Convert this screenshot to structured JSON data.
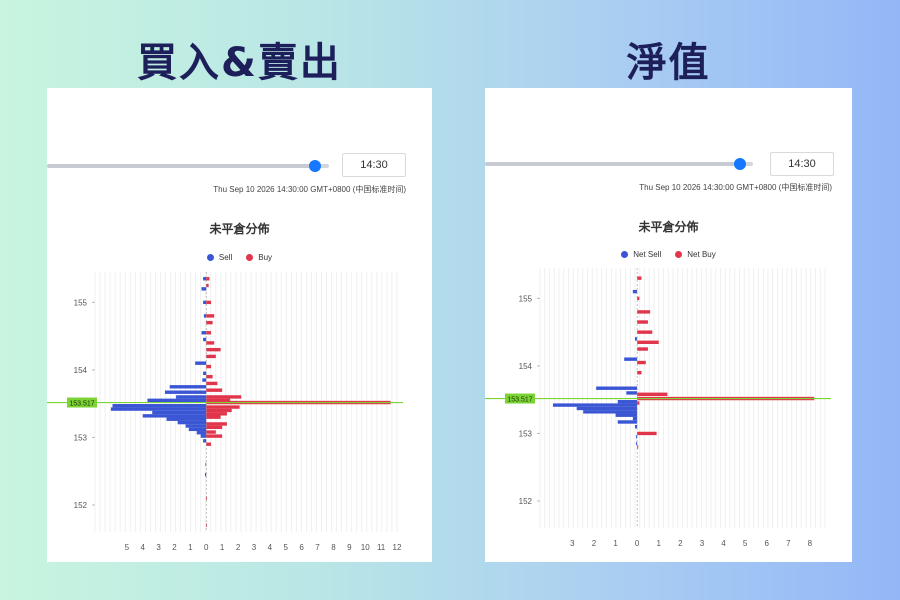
{
  "headings": {
    "left": "買入&賣出",
    "right": "淨值"
  },
  "colors": {
    "sell": "#3a56d4",
    "buy": "#e0354a",
    "price_line": "#7bd336",
    "price_label_bg": "#7bd336",
    "slider": "#1677ff"
  },
  "panels": [
    {
      "id": "left",
      "time_input": "14:30",
      "slider_value": 0.95,
      "datetime_text": "Thu Sep 10 2026 14:30:00 GMT+0800 (中国标准时间)",
      "chart_data": {
        "type": "bar",
        "orientation": "horizontal",
        "title": "未平倉分佈",
        "legend": [
          "Sell",
          "Buy"
        ],
        "legend_position": "top-center",
        "x_ticks": [
          "5",
          "4",
          "3",
          "2",
          "1",
          "0",
          "1",
          "2",
          "3",
          "4",
          "5",
          "6",
          "7",
          "8",
          "9",
          "10",
          "11",
          "12"
        ],
        "xlim": [
          -7,
          12
        ],
        "ylim": [
          151.6,
          155.45
        ],
        "y_ticks": [
          "152",
          "153",
          "154",
          "155"
        ],
        "current_price_label": "153.517",
        "current_price": 153.517,
        "grid": "vertical",
        "series": [
          {
            "name": "Sell",
            "values": [
              [
                155.35,
                0.2
              ],
              [
                155.2,
                0.3
              ],
              [
                155.0,
                0.2
              ],
              [
                154.8,
                0.15
              ],
              [
                154.55,
                0.3
              ],
              [
                154.45,
                0.2
              ],
              [
                154.1,
                0.7
              ],
              [
                153.95,
                0.2
              ],
              [
                153.85,
                0.25
              ],
              [
                153.75,
                2.3
              ],
              [
                153.67,
                2.6
              ],
              [
                153.6,
                1.9
              ],
              [
                153.55,
                3.7
              ],
              [
                153.47,
                5.9
              ],
              [
                153.42,
                6.0
              ],
              [
                153.37,
                3.4
              ],
              [
                153.32,
                4.0
              ],
              [
                153.27,
                2.5
              ],
              [
                153.22,
                1.8
              ],
              [
                153.17,
                1.3
              ],
              [
                153.12,
                1.1
              ],
              [
                153.07,
                0.6
              ],
              [
                153.02,
                0.35
              ],
              [
                152.95,
                0.2
              ],
              [
                152.6,
                0.05
              ],
              [
                152.45,
                0.08
              ]
            ]
          },
          {
            "name": "Buy",
            "values": [
              [
                155.35,
                0.2
              ],
              [
                155.25,
                0.15
              ],
              [
                155.0,
                0.3
              ],
              [
                154.8,
                0.5
              ],
              [
                154.7,
                0.4
              ],
              [
                154.55,
                0.3
              ],
              [
                154.4,
                0.5
              ],
              [
                154.3,
                0.9
              ],
              [
                154.2,
                0.6
              ],
              [
                154.05,
                0.3
              ],
              [
                153.9,
                0.4
              ],
              [
                153.8,
                0.7
              ],
              [
                153.7,
                1.0
              ],
              [
                153.6,
                2.2
              ],
              [
                153.55,
                1.5
              ],
              [
                153.517,
                11.6
              ],
              [
                153.45,
                2.1
              ],
              [
                153.4,
                1.6
              ],
              [
                153.35,
                1.3
              ],
              [
                153.3,
                0.9
              ],
              [
                153.2,
                1.3
              ],
              [
                153.15,
                1.0
              ],
              [
                153.08,
                0.6
              ],
              [
                153.02,
                1.0
              ],
              [
                152.9,
                0.3
              ],
              [
                152.1,
                0.05
              ],
              [
                151.7,
                0.05
              ]
            ]
          }
        ]
      }
    },
    {
      "id": "right",
      "time_input": "14:30",
      "slider_value": 0.95,
      "datetime_text": "Thu Sep 10 2026 14:30:00 GMT+0800 (中国标准时间)",
      "chart_data": {
        "type": "bar",
        "orientation": "horizontal",
        "title": "未平倉分佈",
        "legend": [
          "Net Sell",
          "Net Buy"
        ],
        "legend_position": "top-center",
        "x_ticks": [
          "3",
          "2",
          "1",
          "0",
          "1",
          "2",
          "3",
          "4",
          "5",
          "6",
          "7",
          "8"
        ],
        "xlim": [
          -4.5,
          8.7
        ],
        "ylim": [
          151.6,
          155.45
        ],
        "y_ticks": [
          "152",
          "153",
          "154",
          "155"
        ],
        "current_price_label": "153.517",
        "current_price": 153.517,
        "grid": "vertical",
        "series": [
          {
            "name": "Net Sell",
            "values": [
              [
                155.1,
                0.2
              ],
              [
                154.4,
                0.1
              ],
              [
                154.1,
                0.6
              ],
              [
                153.67,
                1.9
              ],
              [
                153.6,
                0.5
              ],
              [
                153.47,
                0.9
              ],
              [
                153.42,
                3.9
              ],
              [
                153.37,
                2.8
              ],
              [
                153.32,
                2.5
              ],
              [
                153.27,
                1.0
              ],
              [
                153.22,
                0.2
              ],
              [
                153.17,
                0.9
              ],
              [
                153.1,
                0.1
              ],
              [
                152.95,
                0.05
              ],
              [
                152.85,
                0.05
              ]
            ]
          },
          {
            "name": "Net Buy",
            "values": [
              [
                155.3,
                0.2
              ],
              [
                155.0,
                0.1
              ],
              [
                154.8,
                0.6
              ],
              [
                154.65,
                0.5
              ],
              [
                154.5,
                0.7
              ],
              [
                154.35,
                1.0
              ],
              [
                154.25,
                0.5
              ],
              [
                154.05,
                0.4
              ],
              [
                153.9,
                0.2
              ],
              [
                153.58,
                1.4
              ],
              [
                153.517,
                8.2
              ],
              [
                153.45,
                0.1
              ],
              [
                153.0,
                0.9
              ],
              [
                152.8,
                0.05
              ]
            ]
          }
        ]
      }
    }
  ]
}
